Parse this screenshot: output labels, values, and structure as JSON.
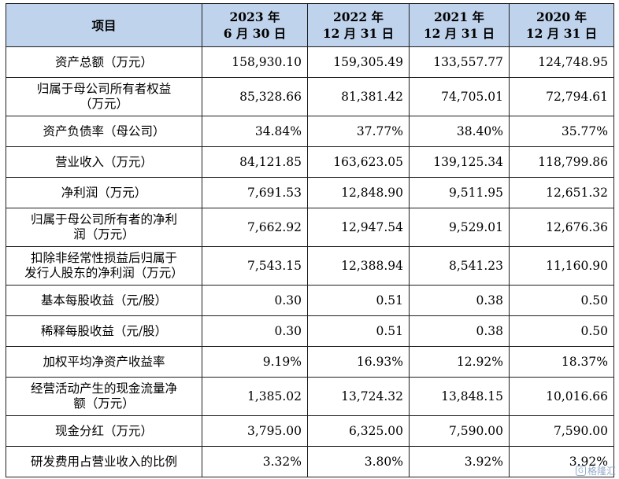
{
  "header": {
    "item": "项目",
    "periods": [
      {
        "line1": "2023 年",
        "line2": "6 月 30 日"
      },
      {
        "line1": "2022 年",
        "line2": "12 月 31 日"
      },
      {
        "line1": "2021 年",
        "line2": "12 月 31 日"
      },
      {
        "line1": "2020 年",
        "line2": "12 月 31 日"
      }
    ]
  },
  "rows": [
    {
      "label": [
        "资产总额（万元）"
      ],
      "values": [
        "158,930.10",
        "159,305.49",
        "133,557.77",
        "124,748.95"
      ]
    },
    {
      "label": [
        "归属于母公司所有者权益",
        "（万元）"
      ],
      "values": [
        "85,328.66",
        "81,381.42",
        "74,705.01",
        "72,794.61"
      ]
    },
    {
      "label": [
        "资产负债率（母公司）"
      ],
      "values": [
        "34.84%",
        "37.77%",
        "38.40%",
        "35.77%"
      ]
    },
    {
      "label": [
        "营业收入（万元）"
      ],
      "values": [
        "84,121.85",
        "163,623.05",
        "139,125.34",
        "118,799.86"
      ]
    },
    {
      "label": [
        "净利润（万元）"
      ],
      "values": [
        "7,691.53",
        "12,848.90",
        "9,511.95",
        "12,651.32"
      ]
    },
    {
      "label": [
        "归属于母公司所有者的净利",
        "润（万元）"
      ],
      "values": [
        "7,662.92",
        "12,947.54",
        "9,529.01",
        "12,676.36"
      ]
    },
    {
      "label": [
        "扣除非经常性损益后归属于",
        "发行人股东的净利润（万元）"
      ],
      "values": [
        "7,543.15",
        "12,388.94",
        "8,541.23",
        "11,160.90"
      ]
    },
    {
      "label": [
        "基本每股收益（元/股）"
      ],
      "values": [
        "0.30",
        "0.51",
        "0.38",
        "0.50"
      ]
    },
    {
      "label": [
        "稀释每股收益（元/股）"
      ],
      "values": [
        "0.30",
        "0.51",
        "0.38",
        "0.50"
      ]
    },
    {
      "label": [
        "加权平均净资产收益率"
      ],
      "values": [
        "9.19%",
        "16.93%",
        "12.92%",
        "18.37%"
      ]
    },
    {
      "label": [
        "经营活动产生的现金流量净",
        "额（万元）"
      ],
      "values": [
        "1,385.02",
        "13,724.32",
        "13,848.15",
        "10,016.66"
      ]
    },
    {
      "label": [
        "现金分红（万元）"
      ],
      "values": [
        "3,795.00",
        "6,325.00",
        "7,590.00",
        "7,590.00"
      ]
    },
    {
      "label": [
        "研发费用占营业收入的比例"
      ],
      "values": [
        "3.32%",
        "3.80%",
        "3.92%",
        "3.92%"
      ]
    }
  ],
  "watermark": {
    "icon": "gelonghui-logo-icon",
    "text": "格隆汇"
  }
}
